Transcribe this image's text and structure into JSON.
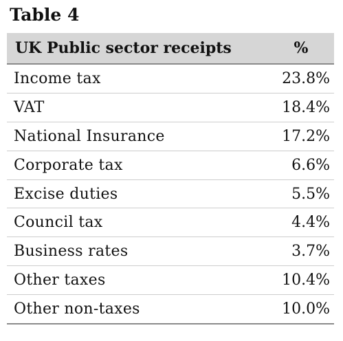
{
  "caption": "Table 4",
  "table": {
    "headers": [
      "UK Public sector receipts",
      "%"
    ],
    "rows": [
      {
        "name": "Income tax",
        "pct": "23.8%"
      },
      {
        "name": "VAT",
        "pct": "18.4%"
      },
      {
        "name": "National Insurance",
        "pct": "17.2%"
      },
      {
        "name": "Corporate tax",
        "pct": "6.6%"
      },
      {
        "name": "Excise duties",
        "pct": "5.5%"
      },
      {
        "name": "Council tax",
        "pct": "4.4%"
      },
      {
        "name": "Business rates",
        "pct": "3.7%"
      },
      {
        "name": "Other taxes",
        "pct": "10.4%"
      },
      {
        "name": "Other non-taxes",
        "pct": "10.0%"
      }
    ]
  },
  "colors": {
    "header_bg": "#d6d6d6",
    "rule": "#cccccc",
    "text": "#111111"
  }
}
